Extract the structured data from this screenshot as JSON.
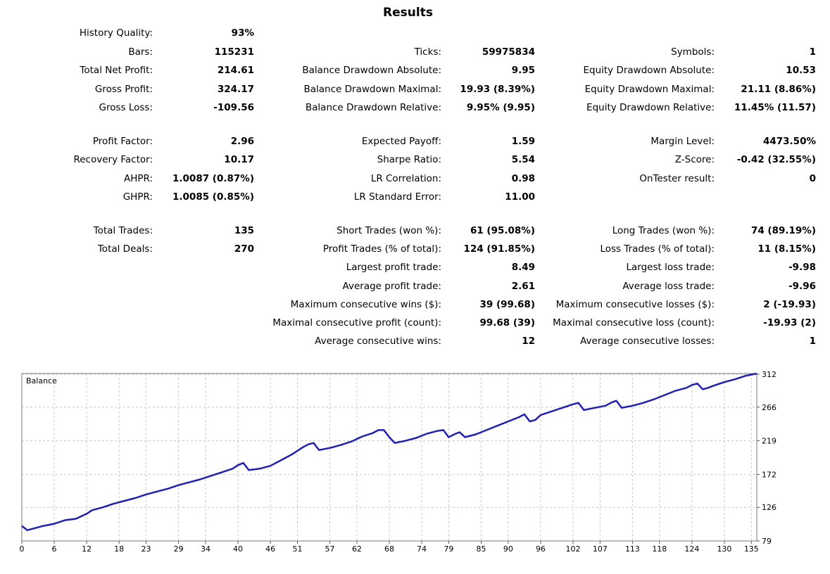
{
  "title": "Results",
  "columns": [
    {
      "rows": [
        {
          "label": "History Quality:",
          "value": "93%"
        },
        {
          "label": "Bars:",
          "value": "115231"
        },
        {
          "label": "Total Net Profit:",
          "value": "214.61"
        },
        {
          "label": "Gross Profit:",
          "value": "324.17"
        },
        {
          "label": "Gross Loss:",
          "value": "-109.56"
        },
        null,
        {
          "label": "Profit Factor:",
          "value": "2.96"
        },
        {
          "label": "Recovery Factor:",
          "value": "10.17"
        },
        {
          "label": "AHPR:",
          "value": "1.0087 (0.87%)"
        },
        {
          "label": "GHPR:",
          "value": "1.0085 (0.85%)"
        },
        null,
        {
          "label": "Total Trades:",
          "value": "135"
        },
        {
          "label": "Total Deals:",
          "value": "270"
        }
      ]
    },
    {
      "rows": [
        null,
        {
          "label": "Ticks:",
          "value": "59975834"
        },
        {
          "label": "Balance Drawdown Absolute:",
          "value": "9.95"
        },
        {
          "label": "Balance Drawdown Maximal:",
          "value": "19.93 (8.39%)"
        },
        {
          "label": "Balance Drawdown Relative:",
          "value": "9.95% (9.95)"
        },
        null,
        {
          "label": "Expected Payoff:",
          "value": "1.59"
        },
        {
          "label": "Sharpe Ratio:",
          "value": "5.54"
        },
        {
          "label": "LR Correlation:",
          "value": "0.98"
        },
        {
          "label": "LR Standard Error:",
          "value": "11.00"
        },
        null,
        {
          "label": "Short Trades (won %):",
          "value": "61 (95.08%)"
        },
        {
          "label": "Profit Trades (% of total):",
          "value": "124 (91.85%)"
        },
        {
          "label": "Largest profit trade:",
          "value": "8.49"
        },
        {
          "label": "Average profit trade:",
          "value": "2.61"
        },
        {
          "label": "Maximum consecutive wins ($):",
          "value": "39 (99.68)"
        },
        {
          "label": "Maximal consecutive profit (count):",
          "value": "99.68 (39)"
        },
        {
          "label": "Average consecutive wins:",
          "value": "12"
        }
      ]
    },
    {
      "rows": [
        null,
        {
          "label": "Symbols:",
          "value": "1"
        },
        {
          "label": "Equity Drawdown Absolute:",
          "value": "10.53"
        },
        {
          "label": "Equity Drawdown Maximal:",
          "value": "21.11 (8.86%)"
        },
        {
          "label": "Equity Drawdown Relative:",
          "value": "11.45% (11.57)"
        },
        null,
        {
          "label": "Margin Level:",
          "value": "4473.50%"
        },
        {
          "label": "Z-Score:",
          "value": "-0.42 (32.55%)"
        },
        {
          "label": "OnTester result:",
          "value": "0"
        },
        null,
        null,
        {
          "label": "Long Trades (won %):",
          "value": "74 (89.19%)"
        },
        {
          "label": "Loss Trades (% of total):",
          "value": "11 (8.15%)"
        },
        {
          "label": "Largest loss trade:",
          "value": "-9.98"
        },
        {
          "label": "Average loss trade:",
          "value": "-9.96"
        },
        {
          "label": "Maximum consecutive losses ($):",
          "value": "2 (-19.93)"
        },
        {
          "label": "Maximal consecutive loss (count):",
          "value": "-19.93 (2)"
        },
        {
          "label": "Average consecutive losses:",
          "value": "1"
        }
      ]
    }
  ],
  "chart_data": {
    "type": "line",
    "title": "Balance",
    "xlabel": "",
    "ylabel": "",
    "x_ticks": [
      "0",
      "6",
      "12",
      "18",
      "23",
      "29",
      "34",
      "40",
      "46",
      "51",
      "57",
      "62",
      "68",
      "74",
      "79",
      "85",
      "90",
      "96",
      "102",
      "107",
      "113",
      "118",
      "124",
      "130",
      "135"
    ],
    "y_ticks": [
      "312",
      "266",
      "219",
      "172",
      "126",
      "79"
    ],
    "xlim": [
      0,
      136
    ],
    "ylim": [
      79,
      313
    ],
    "grid": true,
    "line_color": "#1f1fb4",
    "series": [
      {
        "name": "Balance",
        "x": [
          0,
          1,
          2,
          4,
          6,
          8,
          10,
          12,
          13,
          15,
          17,
          19,
          21,
          23,
          25,
          27,
          29,
          31,
          33,
          35,
          37,
          39,
          40,
          41,
          42,
          44,
          46,
          48,
          50,
          52,
          53,
          54,
          55,
          57,
          59,
          61,
          63,
          65,
          66,
          67,
          68,
          69,
          71,
          73,
          75,
          77,
          78,
          79,
          80,
          81,
          82,
          84,
          86,
          88,
          90,
          92,
          93,
          94,
          95,
          96,
          98,
          100,
          102,
          103,
          104,
          106,
          108,
          109,
          110,
          111,
          113,
          115,
          117,
          119,
          121,
          123,
          124,
          125,
          126,
          127,
          128,
          130,
          132,
          134,
          136
        ],
        "values": [
          100,
          94,
          96,
          100,
          103,
          108,
          110,
          117,
          122,
          126,
          131,
          135,
          139,
          144,
          148,
          152,
          157,
          161,
          165,
          170,
          175,
          180,
          185,
          188,
          178,
          180,
          184,
          192,
          200,
          210,
          214,
          216,
          206,
          209,
          213,
          218,
          225,
          230,
          234,
          234,
          224,
          216,
          219,
          223,
          229,
          233,
          234,
          224,
          228,
          231,
          224,
          228,
          234,
          240,
          246,
          252,
          256,
          246,
          248,
          255,
          260,
          265,
          270,
          272,
          262,
          265,
          268,
          272,
          275,
          265,
          268,
          272,
          277,
          283,
          289,
          293,
          297,
          299,
          291,
          293,
          296,
          301,
          305,
          310,
          313
        ]
      }
    ]
  }
}
